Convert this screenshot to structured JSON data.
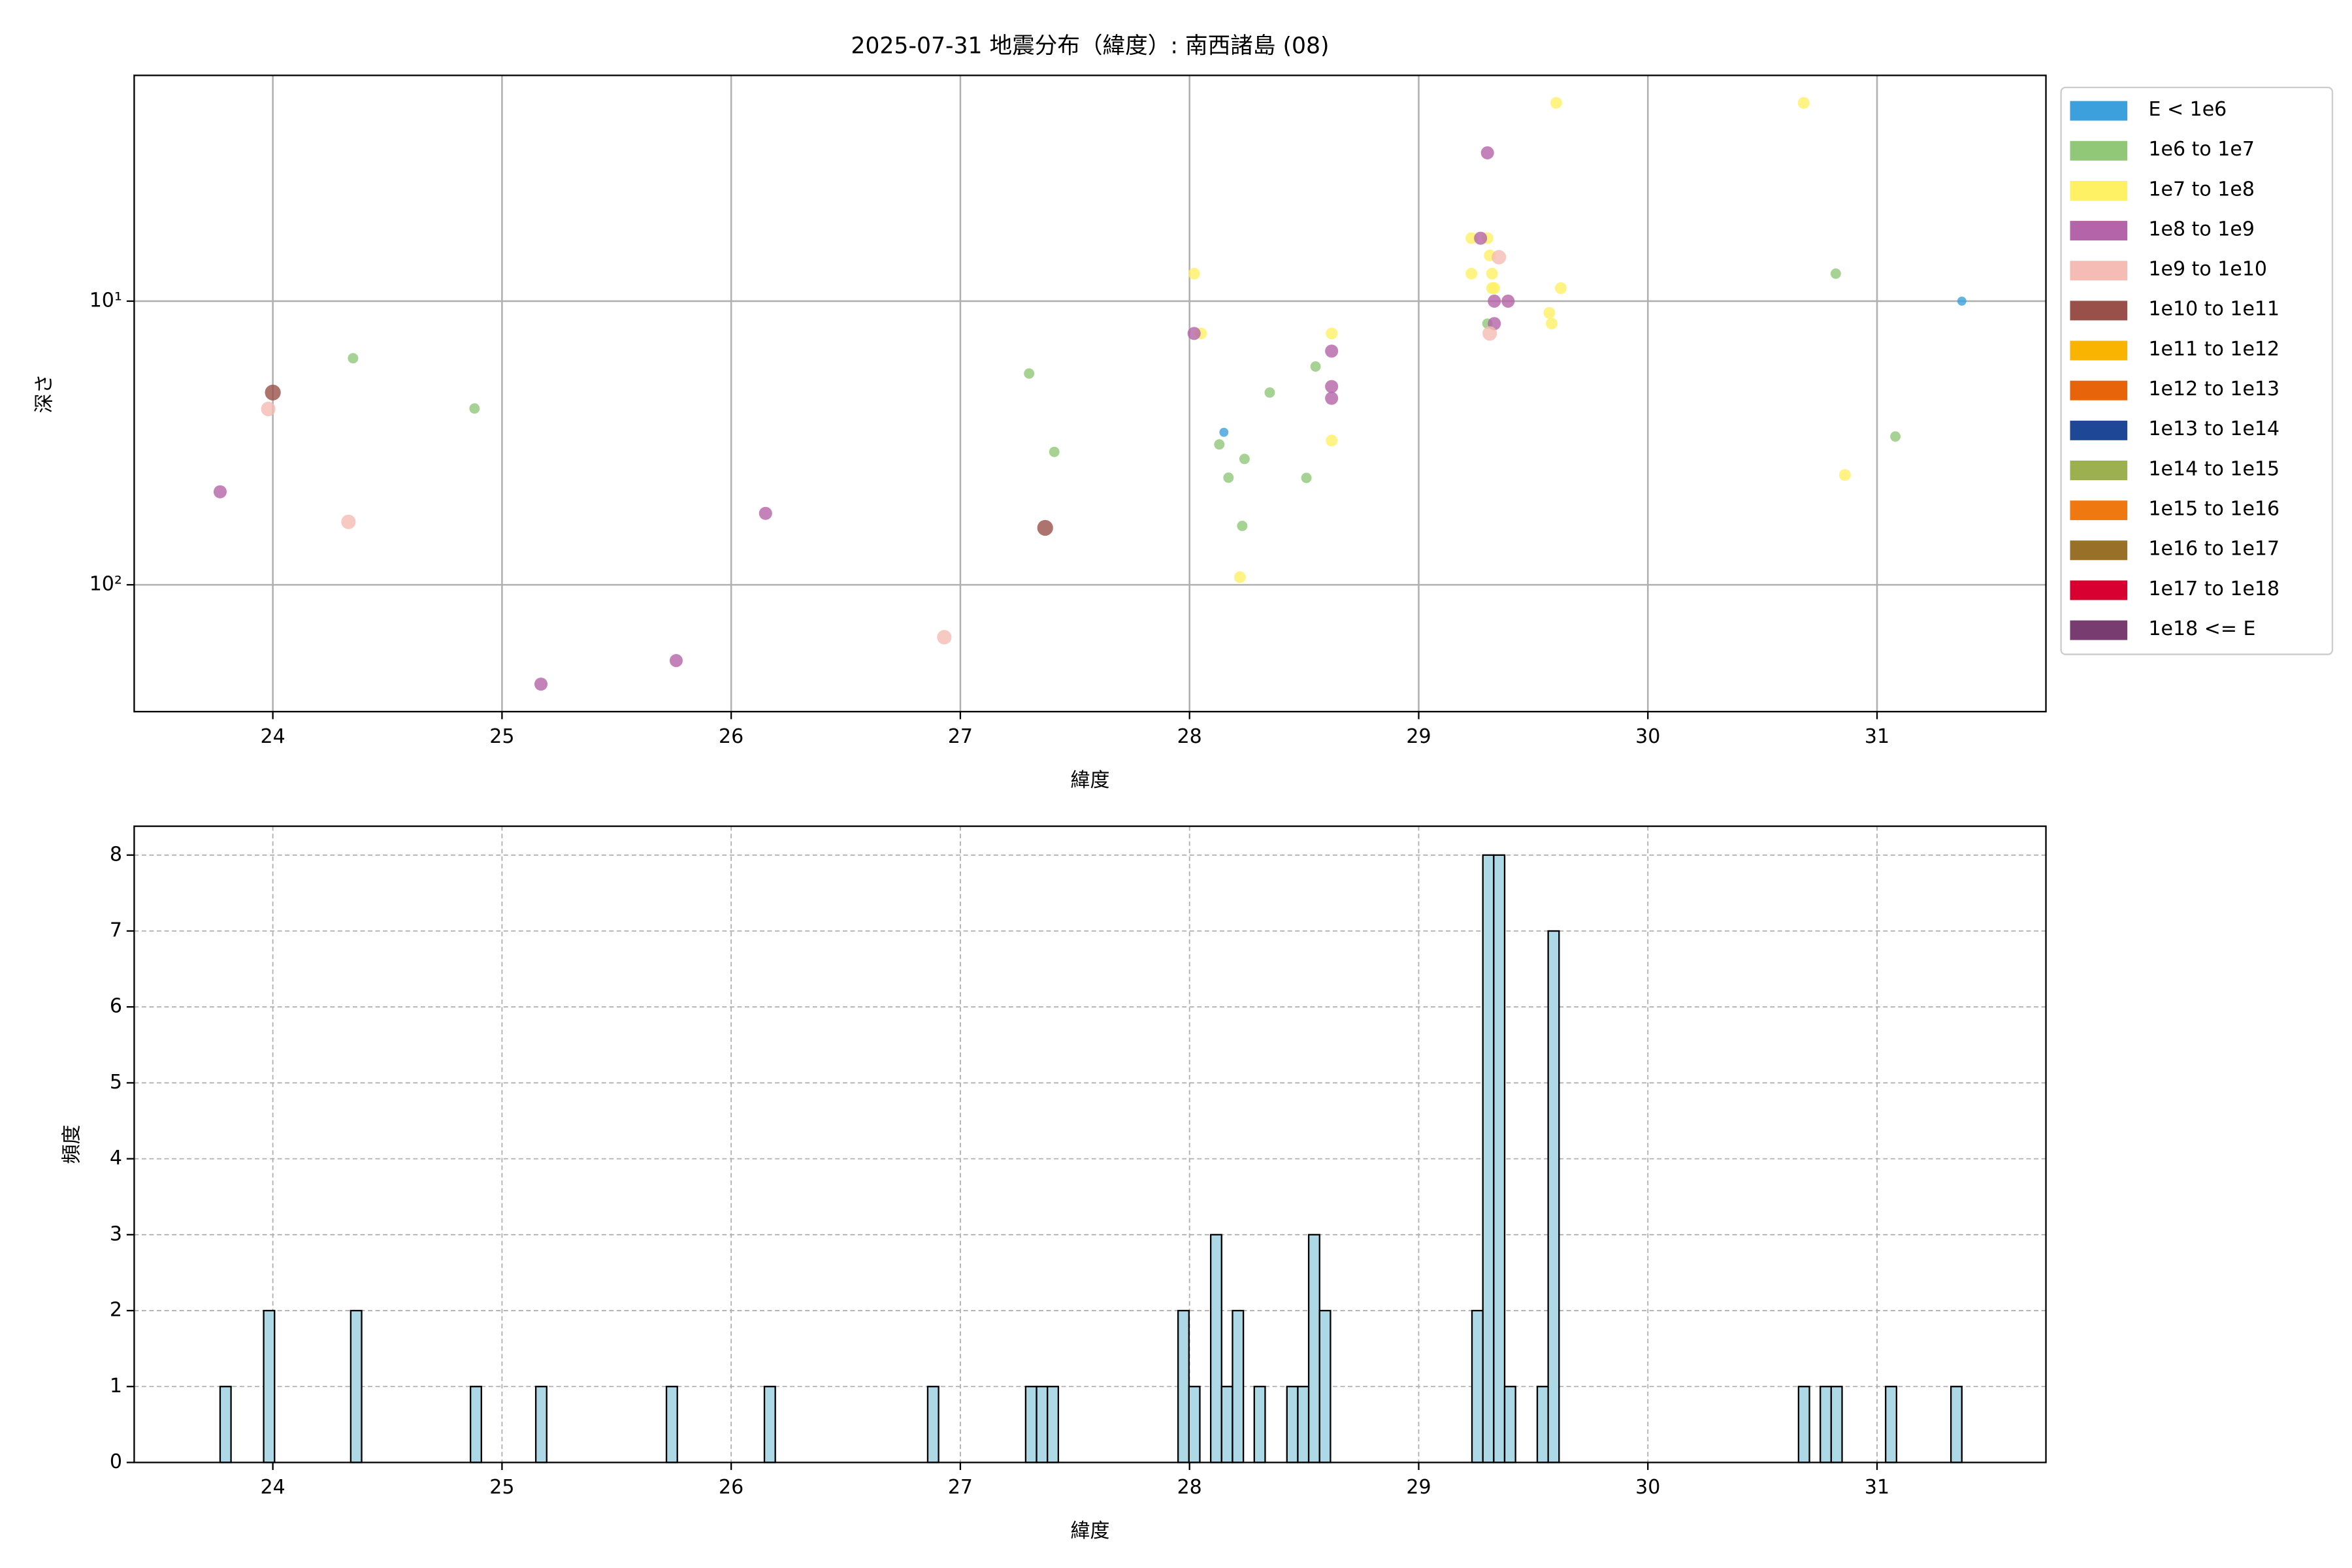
{
  "chart_data": [
    {
      "type": "scatter",
      "title": "2025-07-31 地震分布（緯度）: 南西諸島 (08)",
      "xlabel": "緯度",
      "ylabel": "深さ",
      "xlim": [
        23.395,
        31.737
      ],
      "xticks": [
        24,
        25,
        26,
        27,
        28,
        29,
        30,
        31
      ],
      "ylim": [
        1.6,
        280
      ],
      "yticks": [
        {
          "value": 10,
          "label": "10¹"
        },
        {
          "value": 100,
          "label": "10²"
        }
      ],
      "log_y": true,
      "invert_y": true,
      "grid": true,
      "grid_style": "solid",
      "legend": "outside-right",
      "series": [
        {
          "name": "E < 1e6",
          "color": "#3ca0dc",
          "x": [
            28.15,
            31.37
          ],
          "values": [
            29,
            10
          ]
        },
        {
          "name": "1e6 to 1e7",
          "color": "#90c878",
          "x": [
            24.35,
            24.88,
            27.3,
            27.41,
            28.13,
            28.17,
            28.24,
            28.23,
            28.35,
            28.51,
            28.55,
            29.3,
            30.82,
            31.08
          ],
          "values": [
            15.9,
            23.9,
            18,
            34,
            32,
            41.9,
            36,
            62,
            21,
            42,
            17,
            12,
            8,
            30
          ]
        },
        {
          "name": "1e7 to 1e8",
          "color": "#fff064",
          "x": [
            28.02,
            28.05,
            28.22,
            28.62,
            28.62,
            29.23,
            29.23,
            29.3,
            29.31,
            29.32,
            29.32,
            29.33,
            29.57,
            29.58,
            29.6,
            29.62,
            30.68,
            30.86
          ],
          "values": [
            8,
            13,
            94,
            13,
            31,
            6,
            8,
            6,
            6.9,
            8,
            9,
            9,
            11,
            12,
            2,
            9,
            2,
            41
          ]
        },
        {
          "name": "1e8 to 1e9",
          "color": "#b464a8",
          "x": [
            23.77,
            25.17,
            25.76,
            26.15,
            28.02,
            28.62,
            28.62,
            28.62,
            29.27,
            29.3,
            29.33,
            29.33,
            29.39
          ],
          "values": [
            47,
            224,
            185,
            56,
            13,
            15,
            20,
            22,
            6,
            3,
            10,
            12,
            10
          ]
        },
        {
          "name": "1e9 to 1e10",
          "color": "#f4bcb4",
          "x": [
            23.98,
            24.33,
            26.93,
            29.31,
            29.35
          ],
          "values": [
            24,
            60,
            153,
            13,
            7
          ]
        },
        {
          "name": "1e10 to 1e11",
          "color": "#985048",
          "x": [
            24.0,
            27.37
          ],
          "values": [
            21,
            63
          ]
        },
        {
          "name": "1e11 to 1e12",
          "color": "#f8b400",
          "x": [],
          "values": []
        },
        {
          "name": "1e12 to 1e13",
          "color": "#e8640a",
          "x": [],
          "values": []
        },
        {
          "name": "1e13 to 1e14",
          "color": "#1e4896",
          "x": [],
          "values": []
        },
        {
          "name": "1e14 to 1e15",
          "color": "#9cb050",
          "x": [],
          "values": []
        },
        {
          "name": "1e15 to 1e16",
          "color": "#f07810",
          "x": [],
          "values": []
        },
        {
          "name": "1e16 to 1e17",
          "color": "#987028",
          "x": [],
          "values": []
        },
        {
          "name": "1e17 to 1e18",
          "color": "#d80030",
          "x": [],
          "values": []
        },
        {
          "name": "1e18 <= E",
          "color": "#783c70",
          "x": [],
          "values": []
        }
      ]
    },
    {
      "type": "histogram",
      "xlabel": "緯度",
      "ylabel": "頻度",
      "xlim": [
        23.395,
        31.737
      ],
      "xticks": [
        24,
        25,
        26,
        27,
        28,
        29,
        30,
        31
      ],
      "ylim": [
        0,
        8.38
      ],
      "yticks": [
        0,
        1,
        2,
        3,
        4,
        5,
        6,
        7,
        8
      ],
      "grid": true,
      "grid_style": "dashed",
      "color": "#add8e6",
      "edgecolor": "#000000",
      "bins": [
        23.77,
        23.8175,
        23.96,
        24.0075,
        24.34,
        24.3875,
        24.8625,
        24.91,
        25.1475,
        25.195,
        25.7175,
        25.765,
        26.145,
        26.1925,
        26.8575,
        26.905,
        27.285,
        27.3325,
        27.38,
        27.4275,
        27.95,
        27.9975,
        28.045,
        28.0925,
        28.14,
        28.1875,
        28.235,
        28.2825,
        28.33,
        28.425,
        28.4725,
        28.52,
        28.5675,
        28.615,
        29.2325,
        29.28,
        29.3275,
        29.375,
        29.4225,
        29.5175,
        29.565,
        29.6125,
        30.6575,
        30.705,
        30.7525,
        30.8,
        30.8475,
        31.0375,
        31.085,
        31.3225,
        31.37
      ],
      "values": [
        1,
        0,
        2,
        0,
        2,
        0,
        1,
        0,
        1,
        0,
        1,
        0,
        1,
        0,
        1,
        0,
        1,
        1,
        1,
        0,
        2,
        1,
        0,
        3,
        1,
        2,
        0,
        1,
        0,
        1,
        1,
        3,
        2,
        0,
        2,
        8,
        8,
        1,
        0,
        1,
        7,
        0,
        1,
        0,
        1,
        1,
        0,
        1,
        0,
        1
      ]
    }
  ]
}
